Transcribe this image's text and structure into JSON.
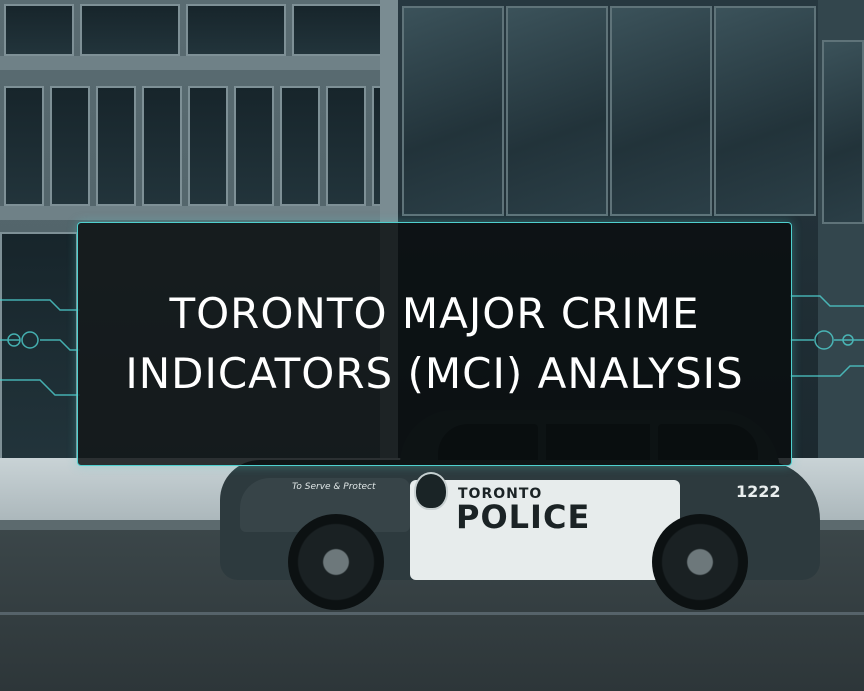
{
  "banner": {
    "title_line_1": "TORONTO MAJOR CRIME",
    "title_line_2": "INDICATORS (MCI) ANALYSIS",
    "accent_color": "#4fd0cf"
  },
  "background": {
    "scene": "storefront street with police car",
    "car": {
      "brand_text": "TORONTO",
      "unit_text": "POLICE",
      "motto_text": "To Serve & Protect",
      "car_number": "1222"
    },
    "tint_color": "#2e4048"
  }
}
